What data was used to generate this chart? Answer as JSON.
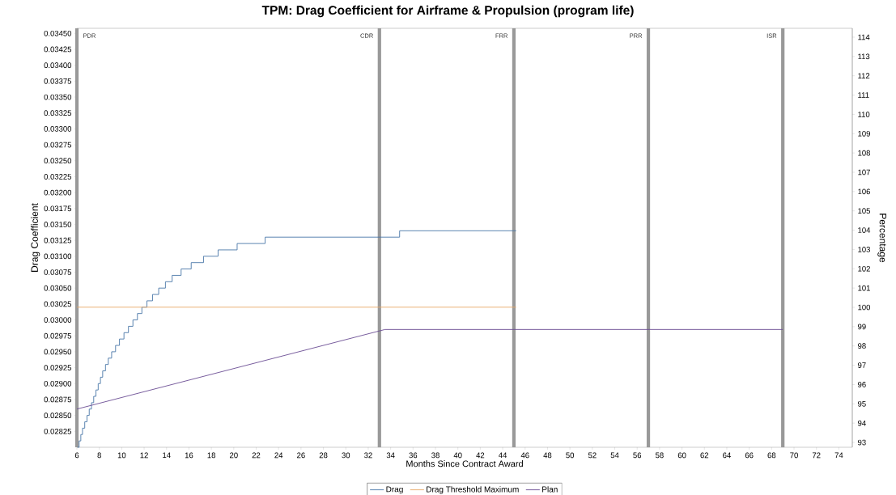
{
  "chart_data": {
    "type": "line",
    "title": "TPM: Drag Coefficient for Airframe & Propulsion (program life)",
    "xlabel": "Months Since Contract Award",
    "ylabel": "Drag Coefficient",
    "y2label": "Percentage",
    "xlim": [
      6,
      75.2
    ],
    "xticks": [
      6,
      8,
      10,
      12,
      14,
      16,
      18,
      20,
      22,
      24,
      26,
      28,
      30,
      32,
      34,
      36,
      38,
      40,
      42,
      44,
      46,
      48,
      50,
      52,
      54,
      56,
      58,
      60,
      62,
      64,
      66,
      68,
      70,
      72,
      74
    ],
    "ylim": [
      0.028,
      0.03458
    ],
    "yticks": [
      {
        "value": 0.02825,
        "label": "0.02825"
      },
      {
        "value": 0.0285,
        "label": "0.02850"
      },
      {
        "value": 0.02875,
        "label": "0.02875"
      },
      {
        "value": 0.029,
        "label": "0.02900"
      },
      {
        "value": 0.02925,
        "label": "0.02925"
      },
      {
        "value": 0.0295,
        "label": "0.02950"
      },
      {
        "value": 0.02975,
        "label": "0.02975"
      },
      {
        "value": 0.03,
        "label": "0.03000"
      },
      {
        "value": 0.03025,
        "label": "0.03025"
      },
      {
        "value": 0.0305,
        "label": "0.03050"
      },
      {
        "value": 0.03075,
        "label": "0.03075"
      },
      {
        "value": 0.031,
        "label": "0.03100"
      },
      {
        "value": 0.03125,
        "label": "0.03125"
      },
      {
        "value": 0.0315,
        "label": "0.03150"
      },
      {
        "value": 0.03175,
        "label": "0.03175"
      },
      {
        "value": 0.032,
        "label": "0.03200"
      },
      {
        "value": 0.03225,
        "label": "0.03225"
      },
      {
        "value": 0.0325,
        "label": "0.03250"
      },
      {
        "value": 0.03275,
        "label": "0.03275"
      },
      {
        "value": 0.033,
        "label": "0.03300"
      },
      {
        "value": 0.03325,
        "label": "0.03325"
      },
      {
        "value": 0.0335,
        "label": "0.03350"
      },
      {
        "value": 0.03375,
        "label": "0.03375"
      },
      {
        "value": 0.034,
        "label": "0.03400"
      },
      {
        "value": 0.03425,
        "label": "0.03425"
      },
      {
        "value": 0.0345,
        "label": "0.03450"
      }
    ],
    "y2lim": [
      92.75,
      114.46
    ],
    "y2ticks": [
      93,
      94,
      95,
      96,
      97,
      98,
      99,
      100,
      101,
      102,
      103,
      104,
      105,
      106,
      107,
      108,
      109,
      110,
      111,
      112,
      113,
      114
    ],
    "legend": "bottom",
    "ref_lines": [
      {
        "axis": "x",
        "value": 6,
        "label": "PDR",
        "color": "#999999"
      },
      {
        "axis": "x",
        "value": 33,
        "label": "CDR",
        "color": "#999999"
      },
      {
        "axis": "x",
        "value": 45,
        "label": "FRR",
        "color": "#999999"
      },
      {
        "axis": "x",
        "value": 57,
        "label": "PRR",
        "color": "#999999"
      },
      {
        "axis": "x",
        "value": 69,
        "label": "ISR",
        "color": "#999999"
      }
    ],
    "series": [
      {
        "name": "Drag",
        "type": "step",
        "color": "#4a77a8",
        "x": [
          6.05,
          6.2,
          6.35,
          6.5,
          6.7,
          6.9,
          7.1,
          7.3,
          7.5,
          7.7,
          7.9,
          8.1,
          8.3,
          8.55,
          8.8,
          9.1,
          9.45,
          9.8,
          10.2,
          10.6,
          11.0,
          11.4,
          11.8,
          12.25,
          12.75,
          13.3,
          13.9,
          14.5,
          15.3,
          16.2,
          17.3,
          18.6,
          20.3,
          22.8,
          34.8,
          45.2
        ],
        "values": [
          0.028,
          0.0281,
          0.0282,
          0.0283,
          0.0284,
          0.0285,
          0.0286,
          0.0287,
          0.0288,
          0.0289,
          0.029,
          0.0291,
          0.0292,
          0.0293,
          0.0294,
          0.0295,
          0.0296,
          0.0297,
          0.0298,
          0.0299,
          0.03,
          0.0301,
          0.0302,
          0.0303,
          0.0304,
          0.0305,
          0.0306,
          0.0307,
          0.0308,
          0.0309,
          0.031,
          0.0311,
          0.0312,
          0.0313,
          0.0314,
          0.0314
        ]
      },
      {
        "name": "Drag Threshold Maximum",
        "color": "#e8a868",
        "x": [
          6,
          45.2
        ],
        "values": [
          0.0302,
          0.0302
        ]
      },
      {
        "name": "Plan",
        "color": "#6a4c93",
        "x": [
          6,
          33.5,
          69
        ],
        "values": [
          0.0286,
          0.02985,
          0.02985
        ]
      }
    ]
  }
}
